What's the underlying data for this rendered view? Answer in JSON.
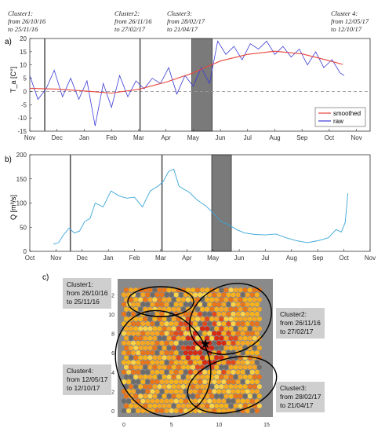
{
  "clusters": [
    {
      "name": "Cluster1:",
      "range": "from 26/10/16",
      "to": "to 25/11/16"
    },
    {
      "name": "Cluster2:",
      "range": "from 26/11/16",
      "to": "to 27/02/17"
    },
    {
      "name": "Cluster3:",
      "range": "from 28/02/17",
      "to": "to 21/04/17"
    },
    {
      "name": "Cluster 4:",
      "range": "from 12/05/17",
      "to": "to 12/10/17"
    }
  ],
  "clusters_c": [
    {
      "name": "Cluster1:",
      "range": "from 26/10/16",
      "to": "to 25/11/16"
    },
    {
      "name": "Cluster2:",
      "range": "from 26/11/16",
      "to": "to 27/02/17"
    },
    {
      "name": "Cluster3:",
      "range": "from 28/02/17",
      "to": "to 21/04/17"
    },
    {
      "name": "Cluster4:",
      "range": "from 12/05/17",
      "to": "to 12/10/17"
    }
  ],
  "colors": {
    "smoothed": "#e8463c",
    "raw": "#3b3bd6",
    "flow": "#3aa6d8",
    "band": "#7a7a7a",
    "dashed": "#999999"
  },
  "chart_data": [
    {
      "panel": "a)",
      "type": "line",
      "xlabel": "",
      "ylabel": "T_a [C°]",
      "x_ticks": [
        "Nov",
        "Dec",
        "Jan",
        "Feb",
        "Mar",
        "Apr",
        "May",
        "Jun",
        "Jul",
        "Aug",
        "Sep",
        "Oct",
        "Nov"
      ],
      "y_ticks": [
        "-15",
        "-10",
        "-5",
        "0",
        "5",
        "10",
        "15",
        "20"
      ],
      "xlim": [
        0,
        12.5
      ],
      "ylim": [
        -15,
        20
      ],
      "vlines": [
        0.55,
        4.05
      ],
      "band": [
        5.95,
        6.7
      ],
      "legend": {
        "position": "bottom-right",
        "entries": [
          "smoothed",
          "raw"
        ]
      },
      "series": [
        {
          "name": "smoothed",
          "x": [
            0,
            1,
            2,
            3,
            4,
            5,
            6,
            7,
            8,
            9,
            10,
            11,
            11.5
          ],
          "values": [
            1.2,
            0.9,
            0.2,
            -0.6,
            0.8,
            3.5,
            7,
            11.5,
            14,
            15.2,
            14.2,
            11.6,
            10.2
          ]
        },
        {
          "name": "raw",
          "x": [
            0,
            0.3,
            0.6,
            0.9,
            1.2,
            1.5,
            1.8,
            2.1,
            2.4,
            2.7,
            3,
            3.3,
            3.6,
            3.9,
            4.2,
            4.5,
            4.8,
            5.1,
            5.4,
            5.7,
            6,
            6.3,
            6.6,
            6.9,
            7.2,
            7.5,
            7.8,
            8.1,
            8.4,
            8.7,
            9,
            9.3,
            9.6,
            9.9,
            10.2,
            10.5,
            10.8,
            11.1,
            11.4,
            11.55
          ],
          "values": [
            6,
            -3,
            1,
            8,
            -2,
            5,
            -3,
            4,
            -13,
            3,
            -6,
            6,
            -2,
            4,
            1,
            5,
            3,
            9,
            -1,
            6,
            2,
            9,
            3,
            19,
            14,
            17,
            12,
            18,
            16,
            19,
            14,
            17,
            13,
            16,
            10,
            15,
            9,
            12,
            7,
            6
          ]
        }
      ]
    },
    {
      "panel": "b)",
      "type": "line",
      "xlabel": "",
      "ylabel": "Q [m³/s]",
      "x_ticks": [
        "Oct",
        "Nov",
        "Dec",
        "Jan",
        "Feb",
        "Mar",
        "Apr",
        "May",
        "Jun",
        "Jul",
        "Aug",
        "Sep",
        "Oct",
        "Nov"
      ],
      "y_ticks": [
        "0",
        "50",
        "100",
        "150",
        "200"
      ],
      "xlim": [
        0,
        13
      ],
      "ylim": [
        0,
        200
      ],
      "vlines": [
        1.55,
        5.05
      ],
      "band": [
        6.95,
        7.7
      ],
      "series": [
        {
          "name": "Q",
          "x": [
            0.9,
            1.1,
            1.3,
            1.5,
            1.7,
            1.9,
            2.1,
            2.3,
            2.5,
            2.8,
            3.1,
            3.4,
            3.7,
            4,
            4.3,
            4.6,
            4.9,
            5.1,
            5.3,
            5.5,
            5.7,
            5.9,
            6.1,
            6.4,
            6.7,
            7,
            7.3,
            7.6,
            7.9,
            8.2,
            8.6,
            9,
            9.4,
            9.8,
            10.2,
            10.6,
            11,
            11.4,
            11.7,
            11.9,
            12.05,
            12.15
          ],
          "values": [
            15,
            18,
            35,
            48,
            38,
            42,
            62,
            68,
            100,
            92,
            125,
            115,
            110,
            112,
            92,
            125,
            135,
            145,
            165,
            170,
            135,
            128,
            122,
            106,
            95,
            80,
            62,
            55,
            45,
            38,
            35,
            34,
            36,
            28,
            22,
            18,
            22,
            28,
            45,
            40,
            60,
            120
          ]
        }
      ]
    },
    {
      "panel": "c)",
      "type": "heatmap",
      "x_ticks": [
        "0",
        "5",
        "10",
        "15"
      ],
      "y_ticks": [
        "0",
        "2",
        "4",
        "6",
        "8",
        "10",
        "12"
      ],
      "xlim": [
        0,
        15
      ],
      "ylim": [
        0,
        13
      ]
    }
  ]
}
